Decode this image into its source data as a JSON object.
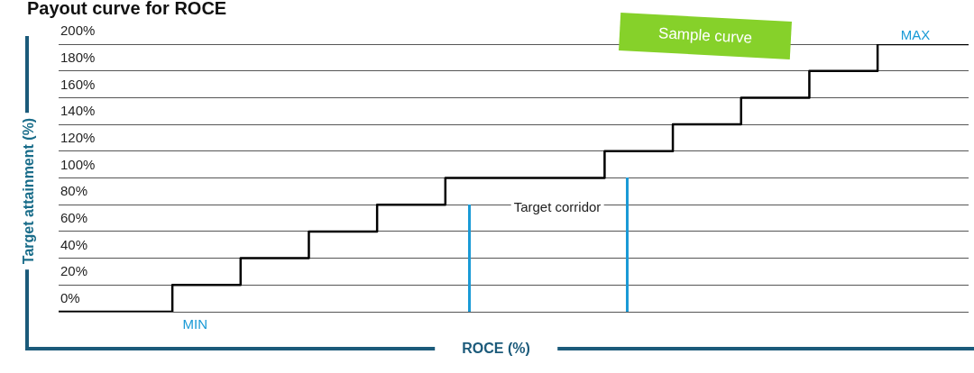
{
  "chart_data": {
    "type": "step",
    "title": "Payout curve for ROCE",
    "xlabel": "ROCE (%)",
    "ylabel": "Target attainment (%)",
    "categories": [
      null,
      null,
      null,
      null,
      null,
      null,
      "MIN",
      null,
      null,
      null,
      null,
      null,
      null,
      null,
      null,
      null,
      null,
      null,
      null,
      null,
      null,
      null,
      null,
      null,
      null,
      null,
      null,
      null,
      null,
      null,
      null,
      null,
      null,
      null,
      null,
      null,
      null,
      null,
      null,
      null,
      null
    ],
    "series": [
      {
        "color": "#000000",
        "values": [
          0,
          0,
          0,
          0,
          0,
          0,
          20,
          20,
          20,
          40,
          40,
          40,
          60,
          60,
          60,
          80,
          80,
          80,
          100,
          100,
          100,
          100,
          100,
          100,
          100,
          120,
          120,
          120,
          140,
          140,
          140,
          160,
          160,
          160,
          180,
          180,
          180,
          200,
          200,
          200,
          200
        ]
      }
    ],
    "ylim": [
      0,
      200
    ],
    "yticks": [
      {
        "value": 0,
        "label": "0%"
      },
      {
        "value": 20,
        "label": "20%"
      },
      {
        "value": 40,
        "label": "40%"
      },
      {
        "value": 60,
        "label": "60%"
      },
      {
        "value": 80,
        "label": "80%"
      },
      {
        "value": 100,
        "label": "100%"
      },
      {
        "value": 120,
        "label": "120%"
      },
      {
        "value": 140,
        "label": "140%"
      },
      {
        "value": 160,
        "label": "160%"
      },
      {
        "value": 180,
        "label": "180%"
      },
      {
        "value": 200,
        "label": "200%"
      }
    ],
    "grid": "y",
    "legend": false,
    "marker": "none",
    "line_style": "solid",
    "annotations": [
      "Sample curve",
      "MAX",
      "Target corridor"
    ]
  }
}
